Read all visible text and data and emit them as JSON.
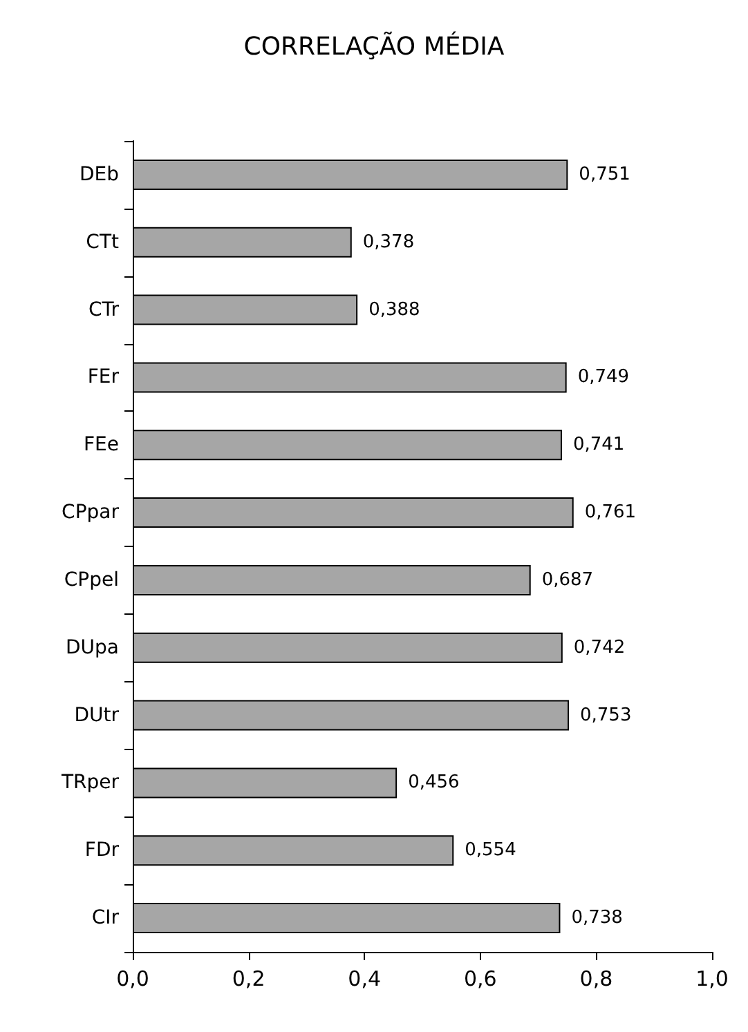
{
  "chart_data": {
    "type": "bar",
    "orientation": "horizontal",
    "title": "CORRELAÇÃO MÉDIA",
    "categories": [
      "DEb",
      "CTt",
      "CTr",
      "FEr",
      "FEe",
      "CPpar",
      "CPpel",
      "DUpa",
      "DUtr",
      "TRper",
      "FDr",
      "CIr"
    ],
    "values": [
      0.751,
      0.378,
      0.388,
      0.749,
      0.741,
      0.761,
      0.687,
      0.742,
      0.753,
      0.456,
      0.554,
      0.738
    ],
    "value_labels": [
      "0,751",
      "0,378",
      "0,388",
      "0,749",
      "0,741",
      "0,761",
      "0,687",
      "0,742",
      "0,753",
      "0,456",
      "0,554",
      "0,738"
    ],
    "color": "#a6a6a6",
    "xlim": [
      0,
      1
    ],
    "xticks": [
      {
        "value": 0,
        "label": "0,0"
      },
      {
        "value": 0.2,
        "label": "0,2"
      },
      {
        "value": 0.4,
        "label": "0,4"
      },
      {
        "value": 0.6,
        "label": "0,6"
      },
      {
        "value": 0.8,
        "label": "0,8"
      },
      {
        "value": 1,
        "label": "1,0"
      }
    ],
    "grid": false
  }
}
